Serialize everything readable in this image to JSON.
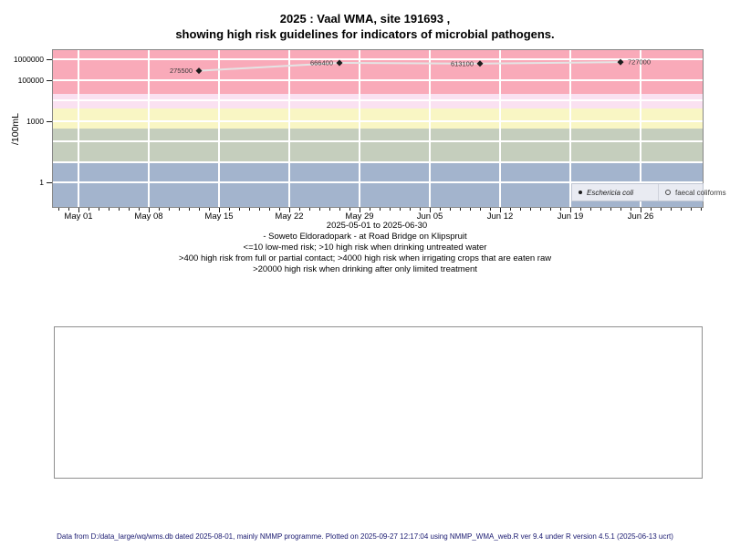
{
  "header": {
    "title_line1": "2025 : Vaal WMA, site 191693 ,",
    "title_line2": "showing high risk guidelines for indicators of microbial pathogens."
  },
  "chart_data": {
    "type": "scatter",
    "title": "2025 : Vaal WMA, site 191693 , showing high risk guidelines for indicators of microbial pathogens.",
    "subtitle": "2025-05-01 to 2025-06-30",
    "ylabel": "/100mL",
    "yscale": "log",
    "ylim_approx": [
      0.06,
      2800000
    ],
    "x_range": [
      "2025-05-01",
      "2025-06-30"
    ],
    "grid": true,
    "grid_color": "#ffffff",
    "yticks": [
      {
        "value": 1000000,
        "label": "1000000"
      },
      {
        "value": 100000,
        "label": "100000"
      },
      {
        "value": 1000,
        "label": "1000"
      },
      {
        "value": 1,
        "label": "1"
      }
    ],
    "xtick_labels": [
      "May 01",
      "May 08",
      "May 15",
      "May 22",
      "May 29",
      "Jun 05",
      "Jun 12",
      "Jun 19",
      "Jun 26"
    ],
    "xtick_interval_days": 7,
    "x_minor_tick_interval_days": 1,
    "line_color": "#e4e4e4",
    "marker_color": "#1c1c1c",
    "point_label_color": "#3a3a3a",
    "series": [
      {
        "name": "Eschericia coli",
        "marker": "filled-diamond",
        "points": [
          {
            "date_est": "2025-05-13",
            "value": 275500,
            "label": "275500",
            "label_side": "left"
          },
          {
            "date_est": "2025-05-27",
            "value": 666400,
            "label": "666400",
            "label_side": "left"
          },
          {
            "date_est": "2025-06-10",
            "value": 613100,
            "label": "613100",
            "label_side": "left"
          },
          {
            "date_est": "2025-06-24",
            "value": 727000,
            "label": "727000",
            "label_side": "right"
          }
        ]
      },
      {
        "name": "faecal coliforms",
        "marker": "open-circle",
        "points": []
      }
    ],
    "risk_bands": [
      {
        "range": ">20000",
        "min": 20000,
        "max": null,
        "color": "#f9aab9"
      },
      {
        "range": "4000-20000",
        "min": 4000,
        "max": 20000,
        "color": "#fae1f1"
      },
      {
        "range": "400-4000",
        "min": 400,
        "max": 4000,
        "color": "#f9f6c4"
      },
      {
        "range": "10-400",
        "min": 10,
        "max": 400,
        "color": "#c5cebd"
      },
      {
        "range": "<=10",
        "min": null,
        "max": 10,
        "color": "#a3b4cd"
      }
    ],
    "legend_position": "bottom-right-inside",
    "legend_bg": "#e9ebf2"
  },
  "captions": [
    "- Soweto Eldoradopark - at Road Bridge on Klipspruit",
    "<=10 low-med risk; >10 high risk when drinking untreated water",
    ">400 high risk from full or partial contact; >4000 high risk when irrigating crops that are eaten raw",
    ">20000 high risk when drinking after only limited treatment"
  ],
  "footer": {
    "text": "Data from D:/data_large/wq/wms.db dated 2025-08-01, mainly NMMP programme. Plotted on 2025-09-27 12:17:04 using NMMP_WMA_web.R ver 9.4 under R version 4.5.1 (2025-06-13 ucrt)",
    "color": "#191970"
  }
}
